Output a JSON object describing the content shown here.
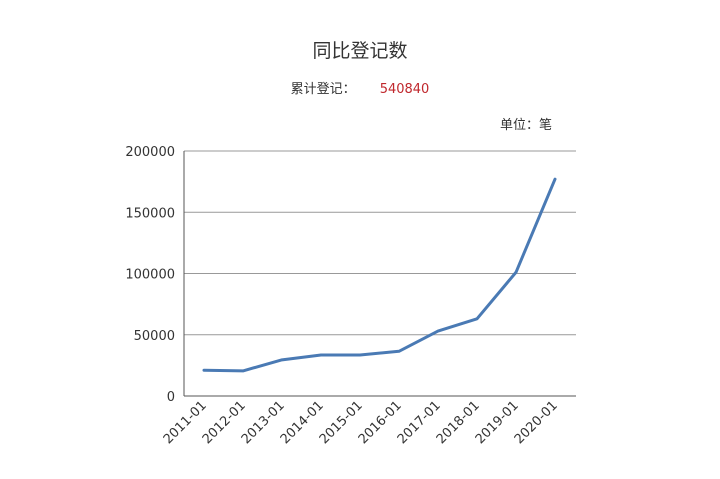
{
  "header": {
    "title": "同比登记数",
    "summary_label": "累计登记：",
    "summary_value": "540840",
    "unit": "单位：笔"
  },
  "colors": {
    "line": "#4a7ab4",
    "summary_value": "#c0282d",
    "grid": "#999999",
    "axis": "#555555"
  },
  "chart_data": {
    "type": "line",
    "title": "同比登记数",
    "categories": [
      "2011-01",
      "2012-01",
      "2013-01",
      "2014-01",
      "2015-01",
      "2016-01",
      "2017-01",
      "2018-01",
      "2019-01",
      "2020-01"
    ],
    "series": [
      {
        "values": [
          21000,
          20500,
          29500,
          33500,
          33500,
          36500,
          53000,
          63000,
          101000,
          177000
        ]
      }
    ],
    "yticks": [
      0,
      50000,
      100000,
      150000,
      200000
    ],
    "ylim": [
      0,
      200000
    ],
    "grid": true,
    "legend": "none"
  }
}
